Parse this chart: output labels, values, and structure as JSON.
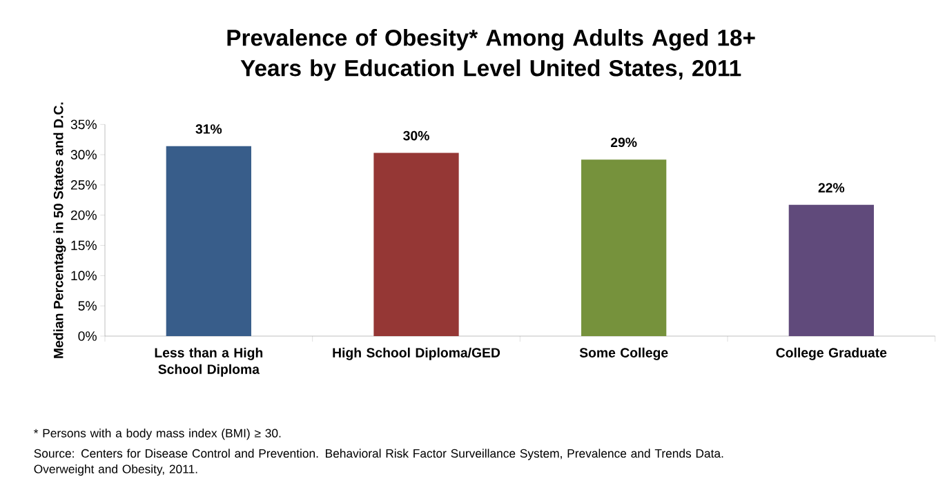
{
  "chart_data": {
    "type": "bar",
    "title": "Prevalence of Obesity* Among Adults Aged 18+ Years by Education Level United States, 2011",
    "ylabel": "Median Percentage in 50 States and D.C.",
    "categories": [
      "Less than a High School Diploma",
      "High School Diploma/GED",
      "Some College",
      "College Graduate"
    ],
    "values": [
      31.4,
      30.3,
      29.2,
      21.7
    ],
    "colors": [
      "#385d8a",
      "#953735",
      "#76923c",
      "#604a7b"
    ],
    "value_labels": [
      "31%",
      "30%",
      "29%",
      "22%"
    ],
    "ylim": [
      0,
      35
    ],
    "yticks": [
      {
        "value": 0,
        "label": "0%"
      },
      {
        "value": 5,
        "label": "5%"
      },
      {
        "value": 10,
        "label": "10%"
      },
      {
        "value": 15,
        "label": "15%"
      },
      {
        "value": 20,
        "label": "20%"
      },
      {
        "value": 25,
        "label": "25%"
      },
      {
        "value": 30,
        "label": "30%"
      },
      {
        "value": 35,
        "label": "35%"
      }
    ],
    "annotations": [
      "* Persons with a body mass index (BMI) ≥ 30.",
      "Source: Centers for Disease Control and Prevention. Behavioral Risk Factor Surveillance System, Prevalence and Trends Data. Overweight and Obesity, 2011."
    ]
  }
}
